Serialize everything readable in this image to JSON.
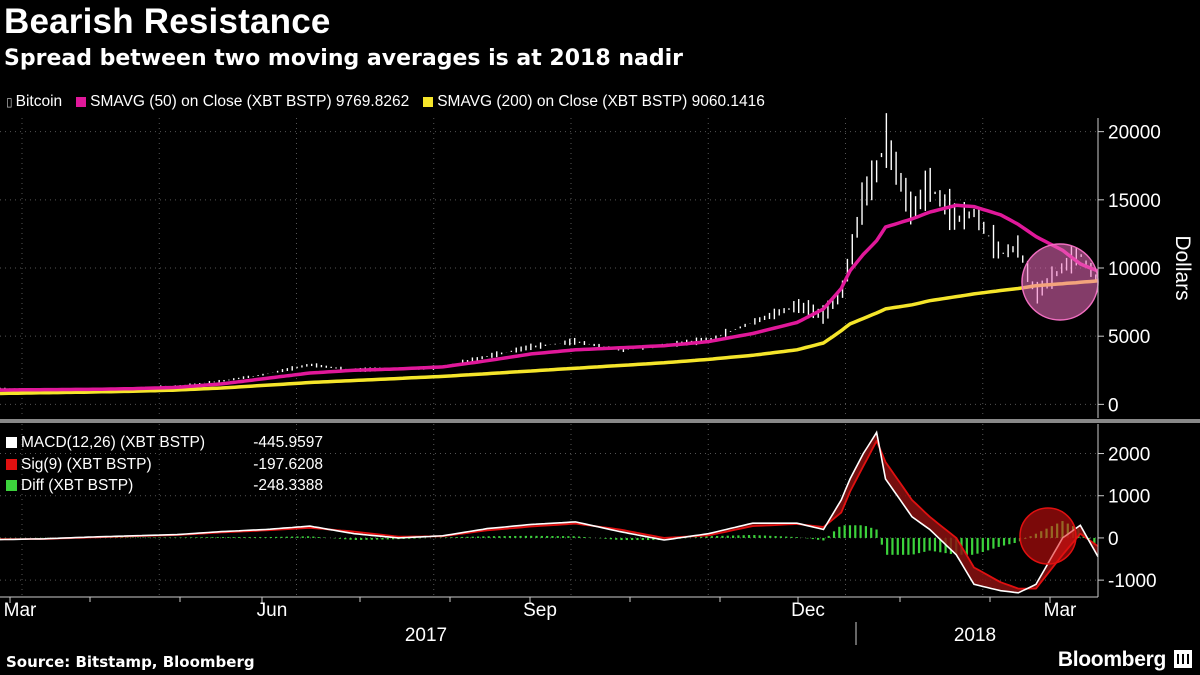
{
  "title": "Bearish Resistance",
  "subtitle": "Spread between two moving averages is at 2018 nadir",
  "legend": {
    "bitcoin": "Bitcoin",
    "sma50": "SMAVG (50) on Close (XBT BSTP) 9769.8262",
    "sma200": "SMAVG (200) on Close (XBT BSTP) 9060.1416"
  },
  "macd_legend": {
    "macd_name": "MACD(12,26) (XBT BSTP)",
    "macd_value": "-445.9597",
    "sig_name": "Sig(9) (XBT BSTP)",
    "sig_value": "-197.6208",
    "diff_name": "Diff (XBT BSTP)",
    "diff_value": "-248.3388"
  },
  "source": "Source: Bitstamp, Bloomberg",
  "brand": "Bloomberg",
  "colors": {
    "bitcoin": "#ffffff",
    "sma50": "#e0189a",
    "sma200": "#f5e52a",
    "macd": "#ffffff",
    "signal": "#e01010",
    "diff": "#3cd33c",
    "highlight_upper": "#f06ec0",
    "highlight_lower": "#e01010"
  },
  "chart_data": [
    {
      "type": "line",
      "title": "Bearish Resistance",
      "ylabel": "Dollars",
      "ylim": [
        -1000,
        21000
      ],
      "yticks": [
        0,
        5000,
        10000,
        15000,
        20000
      ],
      "x_ticks": [
        "Mar",
        "Jun",
        "Sep",
        "Dec",
        "Mar"
      ],
      "year_labels": [
        "2017",
        "2018"
      ],
      "x_months": [
        0,
        0.5,
        1,
        1.5,
        2,
        2.5,
        3,
        3.5,
        4,
        4.5,
        5,
        5.5,
        6,
        6.5,
        7,
        7.5,
        8,
        8.5,
        9,
        9.3,
        9.5,
        9.6,
        9.75,
        9.9,
        10,
        10.3,
        10.5,
        10.8,
        11,
        11.3,
        11.5,
        11.7,
        12,
        12.2,
        12.4
      ],
      "series": [
        {
          "name": "Bitcoin",
          "values": [
            1180,
            1100,
            1050,
            1200,
            1350,
            1700,
            2200,
            2900,
            2500,
            2600,
            2700,
            3500,
            4200,
            4600,
            4000,
            4300,
            4700,
            6000,
            7200,
            6500,
            8000,
            10500,
            15000,
            17000,
            19300,
            14000,
            16000,
            13500,
            14000,
            11000,
            11500,
            8000,
            10000,
            11000,
            9000
          ]
        },
        {
          "name": "SMAVG (50) on Close (XBT BSTP) 9769.8262",
          "values": [
            1050,
            1080,
            1100,
            1150,
            1250,
            1500,
            1900,
            2300,
            2500,
            2600,
            2750,
            3200,
            3700,
            4000,
            4150,
            4300,
            4600,
            5200,
            6000,
            7000,
            8500,
            9800,
            11000,
            12000,
            13000,
            13600,
            14100,
            14600,
            14500,
            13900,
            13200,
            12300,
            11300,
            10300,
            9770
          ]
        },
        {
          "name": "SMAVG (200) on Close (XBT BSTP) 9060.1416",
          "values": [
            800,
            850,
            900,
            960,
            1050,
            1200,
            1400,
            1600,
            1750,
            1900,
            2050,
            2250,
            2450,
            2650,
            2850,
            3050,
            3300,
            3600,
            4000,
            4500,
            5400,
            5900,
            6300,
            6700,
            7000,
            7300,
            7600,
            7900,
            8100,
            8350,
            8500,
            8700,
            8850,
            8950,
            9060
          ]
        }
      ]
    },
    {
      "type": "line",
      "ylim": [
        -1400,
        2700
      ],
      "yticks": [
        -1000,
        0,
        1000,
        2000
      ],
      "x_months": [
        0,
        0.5,
        1,
        1.5,
        2,
        2.5,
        3,
        3.5,
        4,
        4.5,
        5,
        5.5,
        6,
        6.5,
        7,
        7.5,
        8,
        8.5,
        9,
        9.3,
        9.5,
        9.6,
        9.75,
        9.9,
        10,
        10.3,
        10.5,
        10.8,
        11,
        11.3,
        11.5,
        11.7,
        12,
        12.2,
        12.4
      ],
      "series": [
        {
          "name": "MACD(12,26) (XBT BSTP) -445.9597",
          "values": [
            -40,
            -20,
            20,
            50,
            80,
            150,
            200,
            280,
            100,
            0,
            50,
            220,
            320,
            380,
            150,
            -50,
            100,
            350,
            350,
            200,
            900,
            1400,
            2000,
            2500,
            1400,
            500,
            200,
            -400,
            -1100,
            -1250,
            -1300,
            -1100,
            0,
            300,
            -446
          ]
        },
        {
          "name": "Sig(9) (XBT BSTP) -197.6208",
          "values": [
            -30,
            -25,
            10,
            40,
            70,
            130,
            180,
            240,
            150,
            30,
            40,
            180,
            270,
            340,
            200,
            0,
            60,
            280,
            330,
            260,
            600,
            1100,
            1700,
            2300,
            1800,
            900,
            500,
            0,
            -700,
            -1050,
            -1200,
            -1200,
            -400,
            100,
            -198
          ]
        },
        {
          "name": "Diff (XBT BSTP) -248.3388",
          "values": [
            -10,
            5,
            10,
            10,
            10,
            20,
            20,
            40,
            -50,
            -30,
            10,
            40,
            50,
            40,
            -50,
            -50,
            40,
            70,
            20,
            -60,
            300,
            300,
            300,
            200,
            -400,
            -400,
            -300,
            -400,
            -400,
            -200,
            -100,
            100,
            400,
            200,
            -248
          ]
        }
      ]
    }
  ]
}
